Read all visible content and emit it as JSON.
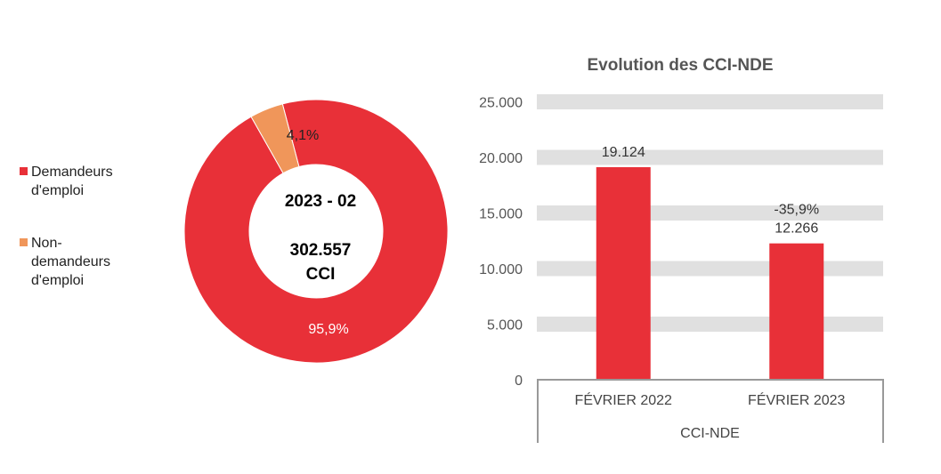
{
  "chart_data": [
    {
      "type": "pie",
      "donut": true,
      "center_text": {
        "period": "2023 - 02",
        "total": "302.557",
        "unit": "CCI"
      },
      "slices": [
        {
          "name": "Demandeurs d'emploi",
          "value": 95.9,
          "label": "95,9%",
          "color": "#e83038"
        },
        {
          "name": "Non-demandeurs d'emploi",
          "value": 4.1,
          "label": "4,1%",
          "color": "#f0965a"
        }
      ],
      "legend": "left"
    },
    {
      "type": "bar",
      "title": "Evolution des CCI-NDE",
      "categories": [
        "FÉVRIER 2022",
        "FÉVRIER 2023"
      ],
      "group_label": "CCI-NDE",
      "values": [
        19124,
        12266
      ],
      "data_labels": [
        "19.124",
        "12.266"
      ],
      "change_label": "-35,9%",
      "yticks": [
        "0",
        "5.000",
        "10.000",
        "15.000",
        "20.000",
        "25.000"
      ],
      "ylim": [
        0,
        25000
      ],
      "grid": true,
      "bar_color": "#e83038",
      "grid_color": "#e0e0e0"
    }
  ]
}
